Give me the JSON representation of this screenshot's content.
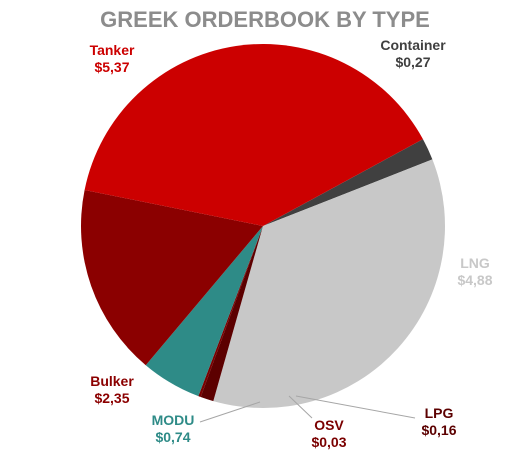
{
  "chart_data": {
    "type": "pie",
    "title": "GREEK ORDERBOOK BY TYPE",
    "slices": [
      {
        "label": "Container",
        "value": 0.27,
        "value_text": "$0,27",
        "color": "#404040",
        "label_color": "#404040"
      },
      {
        "label": "LNG",
        "value": 4.88,
        "value_text": "$4,88",
        "color": "#c8c8c8",
        "label_color": "#c8c8c8"
      },
      {
        "label": "LPG",
        "value": 0.16,
        "value_text": "$0,16",
        "color": "#5c0000",
        "label_color": "#5c0000"
      },
      {
        "label": "OSV",
        "value": 0.03,
        "value_text": "$0,03",
        "color": "#7a0000",
        "label_color": "#7a0000"
      },
      {
        "label": "MODU",
        "value": 0.74,
        "value_text": "$0,74",
        "color": "#2e8b87",
        "label_color": "#2e8b87"
      },
      {
        "label": "Bulker",
        "value": 2.35,
        "value_text": "$2,35",
        "color": "#8b0000",
        "label_color": "#8b0000"
      },
      {
        "label": "Tanker",
        "value": 5.37,
        "value_text": "$5,37",
        "color": "#cc0000",
        "label_color": "#cc0000"
      }
    ]
  }
}
